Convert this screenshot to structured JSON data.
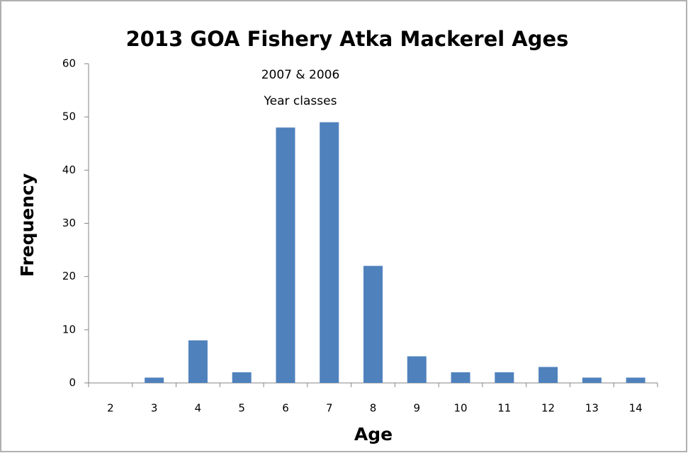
{
  "chart_data": {
    "type": "bar",
    "title": "2013 GOA Fishery Atka Mackerel Ages",
    "annotation": [
      "2007 & 2006",
      "Year classes"
    ],
    "x_label": "Age",
    "y_label": "Frequency",
    "categories": [
      "2",
      "3",
      "4",
      "5",
      "6",
      "7",
      "8",
      "9",
      "10",
      "11",
      "12",
      "13",
      "14"
    ],
    "values": [
      0,
      1,
      8,
      2,
      48,
      49,
      22,
      5,
      2,
      2,
      3,
      1,
      1
    ],
    "color": "#4f81bd",
    "ylim": [
      0,
      60
    ],
    "yticks": [
      0,
      10,
      20,
      30,
      40,
      50,
      60
    ],
    "grid": false
  }
}
